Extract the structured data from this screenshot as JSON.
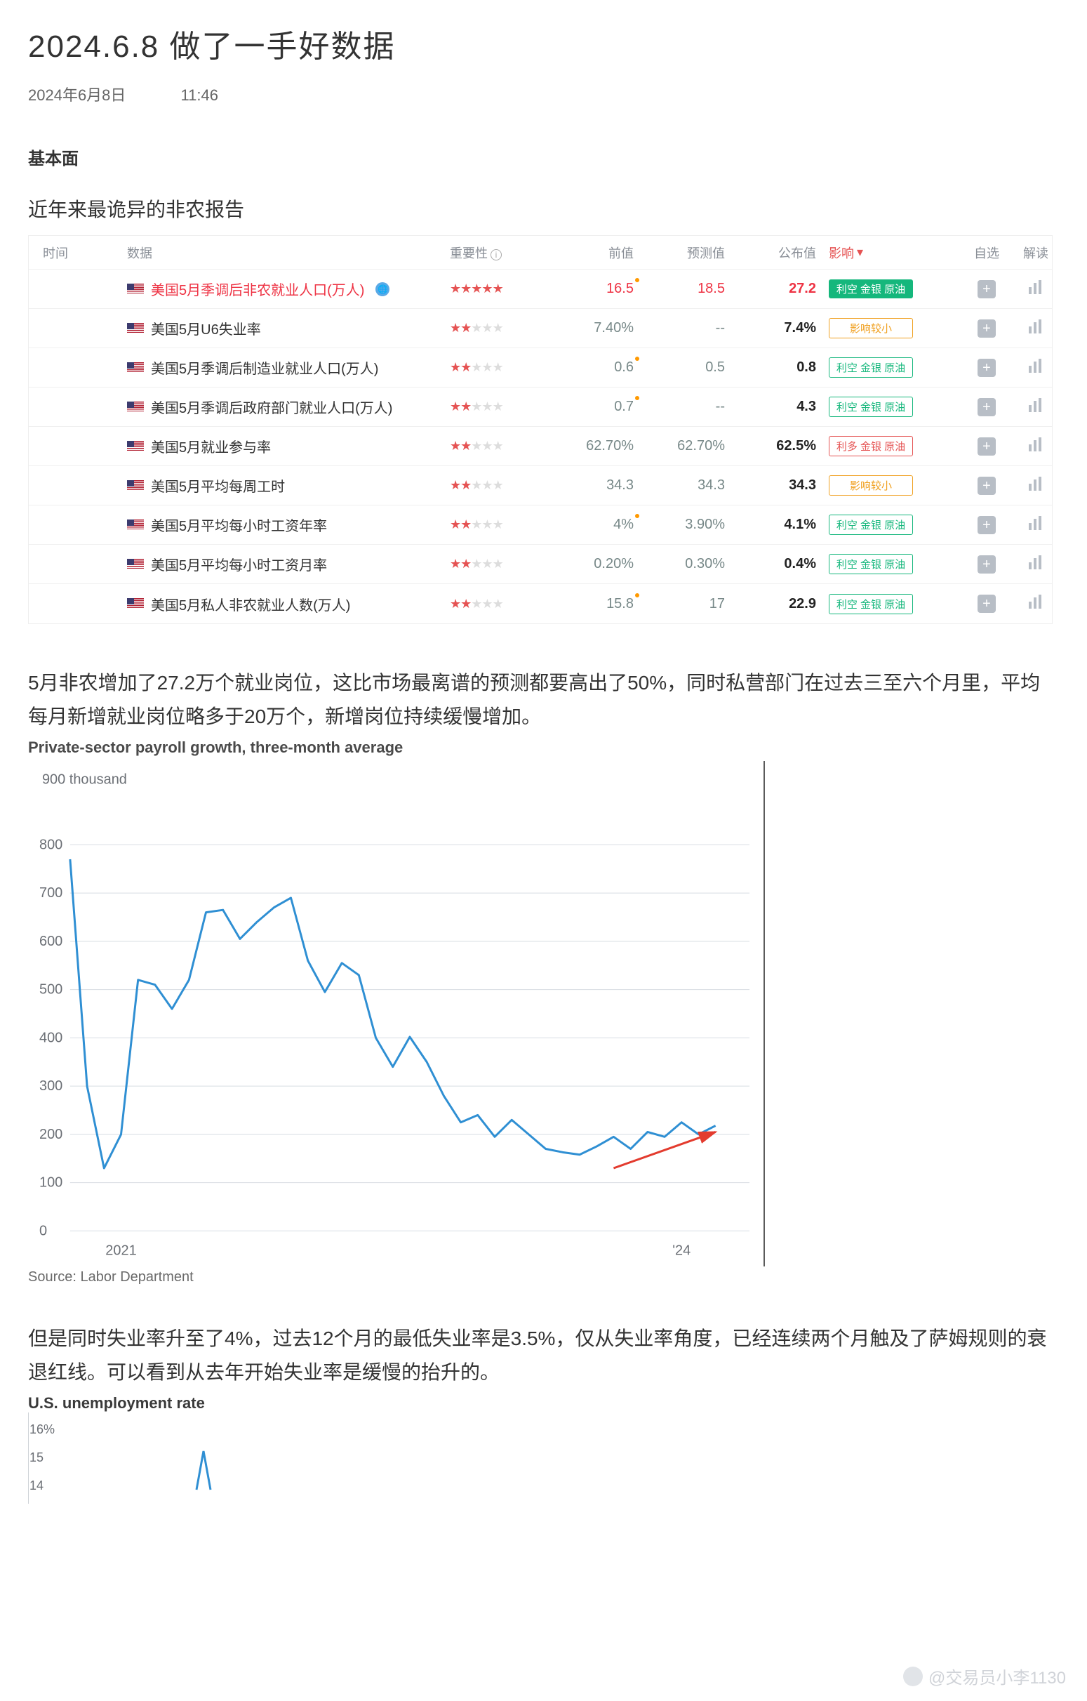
{
  "title": "2024.6.8 做了一手好数据",
  "meta": {
    "date": "2024年6月8日",
    "time": "11:46"
  },
  "section1": "基本面",
  "subhd1": "近年来最诡异的非农报告",
  "table": {
    "columns": [
      "时间",
      "数据",
      "重要性",
      "前值",
      "预测值",
      "公布值",
      "影响",
      "自选",
      "解读"
    ],
    "impact_sort_marker": "▾",
    "info_glyph": "i",
    "rows": [
      {
        "name": "美国5月季调后非农就业人口(万人)",
        "stars": 5,
        "prev": "16.5",
        "fore": "18.5",
        "pub": "27.2",
        "tag": "利空 金银 原油",
        "tag_style": "green",
        "hl": true,
        "globe": true,
        "dot_prev": true
      },
      {
        "name": "美国5月U6失业率",
        "stars": 2,
        "prev": "7.40%",
        "fore": "--",
        "pub": "7.4%",
        "tag": "影响较小",
        "tag_style": "orange-o"
      },
      {
        "name": "美国5月季调后制造业就业人口(万人)",
        "stars": 2,
        "prev": "0.6",
        "fore": "0.5",
        "pub": "0.8",
        "tag": "利空 金银 原油",
        "tag_style": "green-o",
        "dot_prev": true
      },
      {
        "name": "美国5月季调后政府部门就业人口(万人)",
        "stars": 2,
        "prev": "0.7",
        "fore": "--",
        "pub": "4.3",
        "tag": "利空 金银 原油",
        "tag_style": "green-o",
        "dot_prev": true
      },
      {
        "name": "美国5月就业参与率",
        "stars": 2,
        "prev": "62.70%",
        "fore": "62.70%",
        "pub": "62.5%",
        "tag": "利多 金银 原油",
        "tag_style": "red-o"
      },
      {
        "name": "美国5月平均每周工时",
        "stars": 2,
        "prev": "34.3",
        "fore": "34.3",
        "pub": "34.3",
        "tag": "影响较小",
        "tag_style": "orange-o"
      },
      {
        "name": "美国5月平均每小时工资年率",
        "stars": 2,
        "prev": "4%",
        "fore": "3.90%",
        "pub": "4.1%",
        "tag": "利空 金银 原油",
        "tag_style": "green-o",
        "dot_prev": true
      },
      {
        "name": "美国5月平均每小时工资月率",
        "stars": 2,
        "prev": "0.20%",
        "fore": "0.30%",
        "pub": "0.4%",
        "tag": "利空 金银 原油",
        "tag_style": "green-o"
      },
      {
        "name": "美国5月私人非农就业人数(万人)",
        "stars": 2,
        "prev": "15.8",
        "fore": "17",
        "pub": "22.9",
        "tag": "利空 金银 原油",
        "tag_style": "green-o",
        "dot_prev": true
      }
    ]
  },
  "para1": "5月非农增加了27.2万个就业岗位，这比市场最离谱的预测都要高出了50%，同时私营部门在过去三至六个月里，平均每月新增就业岗位略多于20万个，新增岗位持续缓慢增加。",
  "chart1": {
    "type": "line",
    "title": "Private-sector payroll growth, three-month average",
    "unit_label": "900 thousand",
    "y_ticks": [
      0,
      100,
      200,
      300,
      400,
      500,
      600,
      700,
      800
    ],
    "x_ticks": [
      {
        "pos": 0.075,
        "label": "2021"
      },
      {
        "pos": 0.9,
        "label": "'24"
      }
    ],
    "source": "Source: Labor Department",
    "xlim": [
      0,
      1
    ],
    "ylim": [
      0,
      900
    ],
    "line_color": "#2f8fd3",
    "line_width": 3,
    "grid_color": "#d8dde2",
    "axis_text_color": "#6b6f75",
    "background": "#ffffff",
    "arrow_color": "#e33b2e",
    "data": [
      [
        0.0,
        770
      ],
      [
        0.025,
        300
      ],
      [
        0.05,
        130
      ],
      [
        0.075,
        200
      ],
      [
        0.1,
        520
      ],
      [
        0.125,
        510
      ],
      [
        0.15,
        460
      ],
      [
        0.175,
        520
      ],
      [
        0.2,
        660
      ],
      [
        0.225,
        665
      ],
      [
        0.25,
        605
      ],
      [
        0.275,
        640
      ],
      [
        0.3,
        670
      ],
      [
        0.325,
        690
      ],
      [
        0.35,
        560
      ],
      [
        0.375,
        495
      ],
      [
        0.4,
        555
      ],
      [
        0.425,
        530
      ],
      [
        0.45,
        400
      ],
      [
        0.475,
        340
      ],
      [
        0.5,
        402
      ],
      [
        0.525,
        350
      ],
      [
        0.55,
        280
      ],
      [
        0.575,
        225
      ],
      [
        0.6,
        240
      ],
      [
        0.625,
        195
      ],
      [
        0.65,
        230
      ],
      [
        0.675,
        200
      ],
      [
        0.7,
        170
      ],
      [
        0.725,
        163
      ],
      [
        0.75,
        158
      ],
      [
        0.775,
        175
      ],
      [
        0.8,
        195
      ],
      [
        0.825,
        170
      ],
      [
        0.85,
        205
      ],
      [
        0.875,
        195
      ],
      [
        0.9,
        225
      ],
      [
        0.925,
        200
      ],
      [
        0.95,
        218
      ]
    ],
    "arrow": {
      "from": [
        0.8,
        130
      ],
      "to": [
        0.95,
        205
      ]
    }
  },
  "para2": "但是同时失业率升至了4%，过去12个月的最低失业率是3.5%，仅从失业率角度，已经连续两个月触及了萨姆规则的衰退红线。可以看到从去年开始失业率是缓慢的抬升的。",
  "chart2": {
    "type": "line",
    "title": "U.S. unemployment rate",
    "y_ticks": [
      "16%",
      "15",
      "14"
    ],
    "line_color": "#2f8fd3",
    "axis_text_color": "#6b6f75"
  },
  "watermark": "@交易员小李1130"
}
